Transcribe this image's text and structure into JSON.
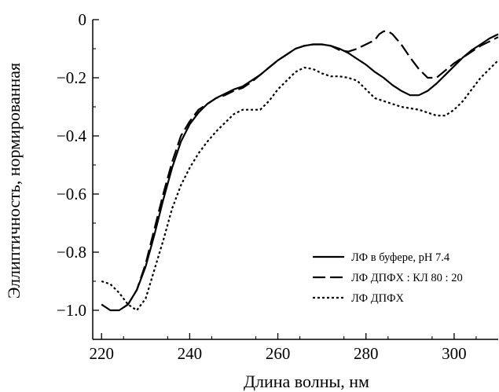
{
  "chart_data": {
    "type": "line",
    "xlabel": "Длина волны, нм",
    "ylabel": "Эллиптичность, нормированная",
    "xlim": [
      218,
      310
    ],
    "ylim": [
      -1.1,
      0
    ],
    "xticks": [
      220,
      240,
      260,
      280,
      300
    ],
    "xtick_labels": [
      "220",
      "240",
      "260",
      "280",
      "300"
    ],
    "yticks": [
      0,
      -0.2,
      -0.4,
      -0.6,
      -0.8,
      -1.0
    ],
    "ytick_labels": [
      "0",
      "−0.2",
      "−0.4",
      "−0.6",
      "−0.8",
      "−1.0"
    ],
    "grid": false,
    "legend_position": "lower-right",
    "series": [
      {
        "name": "ЛФ в буфере, рН 7.4",
        "style": "solid",
        "color": "#000000",
        "x": [
          220,
          222,
          224,
          226,
          228,
          230,
          232,
          234,
          236,
          238,
          240,
          242,
          244,
          246,
          248,
          250,
          252,
          254,
          256,
          258,
          260,
          262,
          264,
          266,
          268,
          270,
          272,
          274,
          276,
          278,
          280,
          282,
          284,
          286,
          288,
          290,
          292,
          294,
          296,
          298,
          300,
          302,
          304,
          306,
          308,
          310
        ],
        "y": [
          -0.98,
          -1.0,
          -1.0,
          -0.98,
          -0.93,
          -0.85,
          -0.74,
          -0.62,
          -0.51,
          -0.42,
          -0.36,
          -0.32,
          -0.29,
          -0.27,
          -0.255,
          -0.24,
          -0.23,
          -0.21,
          -0.19,
          -0.165,
          -0.14,
          -0.12,
          -0.1,
          -0.09,
          -0.085,
          -0.085,
          -0.09,
          -0.1,
          -0.115,
          -0.135,
          -0.155,
          -0.18,
          -0.2,
          -0.225,
          -0.245,
          -0.26,
          -0.26,
          -0.245,
          -0.22,
          -0.19,
          -0.16,
          -0.13,
          -0.105,
          -0.085,
          -0.065,
          -0.05
        ]
      },
      {
        "name": "ЛФ ДПФХ : КЛ 80 : 20",
        "style": "dashed",
        "color": "#000000",
        "x": [
          225,
          226,
          228,
          230,
          232,
          234,
          236,
          238,
          240,
          242,
          244,
          246,
          248,
          250,
          252,
          254,
          256,
          258,
          260,
          262,
          264,
          266,
          268,
          270,
          272,
          274,
          276,
          278,
          280,
          282,
          283,
          284,
          285,
          286,
          288,
          290,
          292,
          294,
          296,
          298,
          300,
          302,
          304,
          306,
          308,
          310
        ],
        "y": [
          -0.99,
          -0.98,
          -0.93,
          -0.84,
          -0.72,
          -0.6,
          -0.49,
          -0.4,
          -0.35,
          -0.31,
          -0.29,
          -0.27,
          -0.26,
          -0.245,
          -0.235,
          -0.215,
          -0.19,
          -0.165,
          -0.14,
          -0.12,
          -0.1,
          -0.09,
          -0.085,
          -0.085,
          -0.09,
          -0.105,
          -0.11,
          -0.1,
          -0.085,
          -0.07,
          -0.05,
          -0.04,
          -0.04,
          -0.05,
          -0.085,
          -0.13,
          -0.17,
          -0.2,
          -0.2,
          -0.175,
          -0.15,
          -0.13,
          -0.11,
          -0.09,
          -0.075,
          -0.06
        ]
      },
      {
        "name": "ЛФ ДПФХ",
        "style": "dotted",
        "color": "#000000",
        "x": [
          220,
          222,
          224,
          226,
          228,
          230,
          232,
          234,
          236,
          238,
          240,
          242,
          244,
          246,
          248,
          250,
          252,
          254,
          256,
          258,
          260,
          262,
          264,
          266,
          268,
          270,
          272,
          274,
          276,
          278,
          280,
          282,
          284,
          286,
          288,
          290,
          292,
          294,
          296,
          298,
          300,
          302,
          304,
          306,
          308,
          310
        ],
        "y": [
          -0.9,
          -0.91,
          -0.94,
          -0.98,
          -1.0,
          -0.96,
          -0.86,
          -0.76,
          -0.65,
          -0.57,
          -0.51,
          -0.46,
          -0.42,
          -0.385,
          -0.355,
          -0.325,
          -0.31,
          -0.31,
          -0.31,
          -0.28,
          -0.24,
          -0.21,
          -0.18,
          -0.165,
          -0.17,
          -0.185,
          -0.195,
          -0.195,
          -0.2,
          -0.21,
          -0.24,
          -0.27,
          -0.28,
          -0.29,
          -0.3,
          -0.305,
          -0.31,
          -0.32,
          -0.33,
          -0.33,
          -0.31,
          -0.28,
          -0.24,
          -0.2,
          -0.17,
          -0.14
        ]
      }
    ]
  }
}
